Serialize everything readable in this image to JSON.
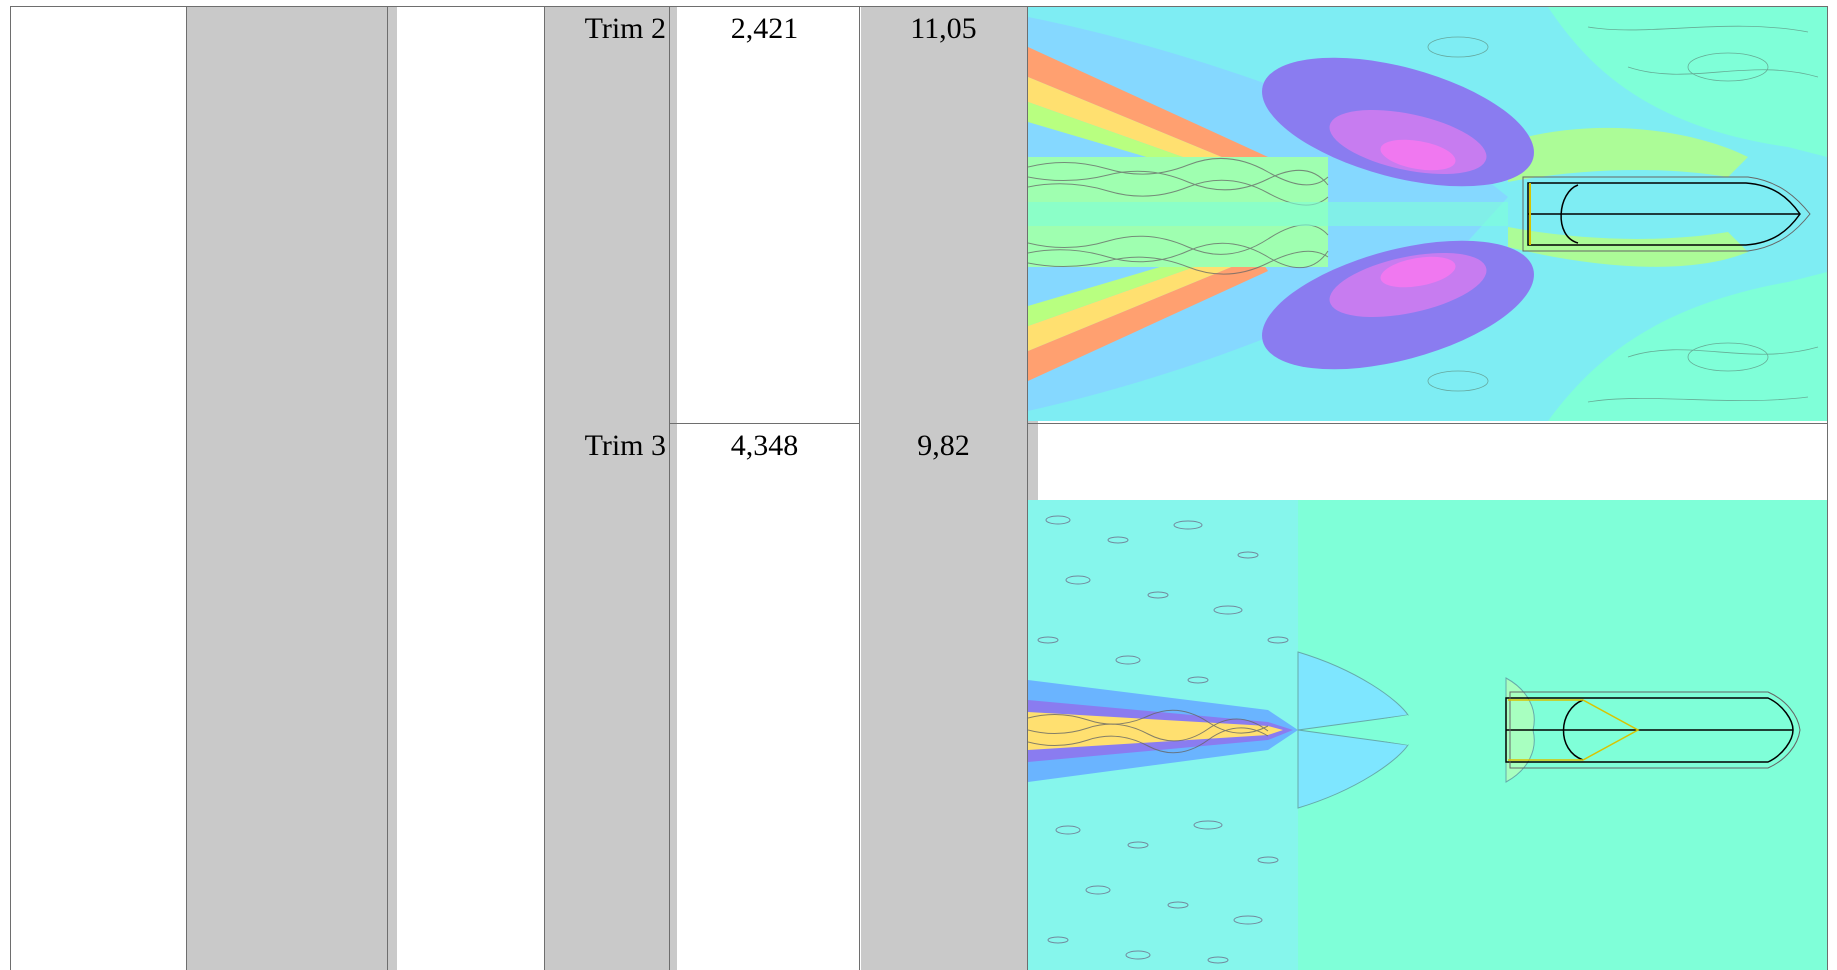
{
  "rows": [
    {
      "label": "Trim 2",
      "value1": "2,421",
      "value2": "11,05",
      "image_name": "trim-2-wave-contour-plot"
    },
    {
      "label": "Trim 3",
      "value1": "4,348",
      "value2": "9,82",
      "image_name": "trim-3-wave-contour-plot"
    }
  ],
  "colors": {
    "shaded_column": "#c9c9c9",
    "grid_line": "#6e6e6e",
    "water_background": "#7fffd8"
  }
}
